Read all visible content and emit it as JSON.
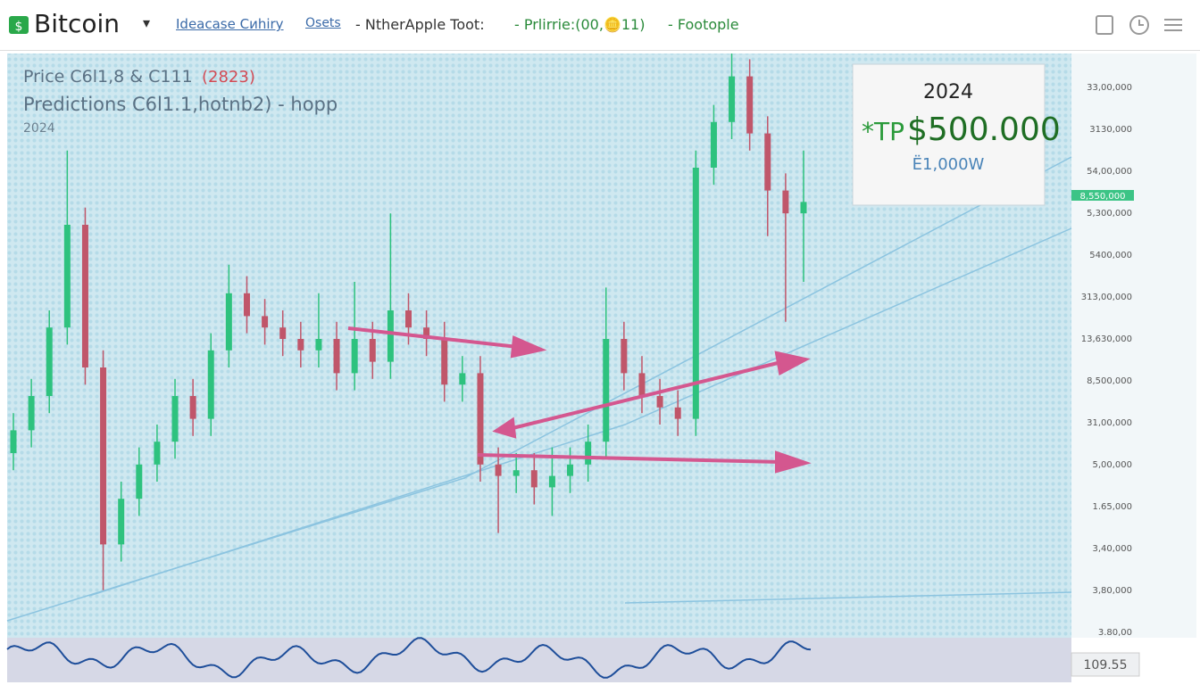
{
  "header": {
    "logo": "Bitcoin",
    "tabs": [
      "Ideacase Cиhiry",
      "Osets"
    ],
    "items": [
      "- NtherApple Toot:",
      "- Prlirrie:(00,🪙11)",
      "- Footople"
    ]
  },
  "chart": {
    "legend": {
      "price": "Price C6l1,8 & C111",
      "price_tag": "(2823)",
      "predictions": "Predictions C6l1.1,hotnb2) - hopp",
      "year": "2024"
    },
    "callout": {
      "year": "2024",
      "prefix": "*TP",
      "target": "$500.000",
      "sub": "Ё1,000W"
    },
    "price_labels": [
      "33,00,000",
      "3130,000",
      "54,00,000",
      "5,300,000",
      "5400,000",
      "313,00,000",
      "13,630,000",
      "8,500,000",
      "31,00,000",
      "5,00,000",
      "1.65,000",
      "3,40,000",
      "3,80,000",
      "3.80,00"
    ],
    "price_tag": "8,550,000",
    "indicator_value": "109.55",
    "ylim": [
      0,
      100
    ],
    "candles": [
      [
        30,
        37,
        27,
        34
      ],
      [
        34,
        43,
        31,
        40
      ],
      [
        40,
        55,
        37,
        52
      ],
      [
        52,
        83,
        49,
        70
      ],
      [
        70,
        73,
        42,
        45
      ],
      [
        45,
        48,
        6,
        14
      ],
      [
        14,
        25,
        11,
        22
      ],
      [
        22,
        31,
        19,
        28
      ],
      [
        28,
        35,
        25,
        32
      ],
      [
        32,
        43,
        29,
        40
      ],
      [
        40,
        43,
        33,
        36
      ],
      [
        36,
        51,
        33,
        48
      ],
      [
        48,
        63,
        45,
        58
      ],
      [
        58,
        61,
        51,
        54
      ],
      [
        54,
        57,
        49,
        52
      ],
      [
        52,
        55,
        47,
        50
      ],
      [
        50,
        53,
        45,
        48
      ],
      [
        48,
        58,
        45,
        50
      ],
      [
        50,
        53,
        41,
        44
      ],
      [
        44,
        60,
        41,
        50
      ],
      [
        50,
        53,
        43,
        46
      ],
      [
        46,
        72,
        43,
        55
      ],
      [
        55,
        58,
        49,
        52
      ],
      [
        52,
        55,
        47,
        50
      ],
      [
        50,
        53,
        39,
        42
      ],
      [
        42,
        47,
        39,
        44
      ],
      [
        44,
        47,
        25,
        28
      ],
      [
        28,
        31,
        16,
        26
      ],
      [
        26,
        30,
        23,
        27
      ],
      [
        27,
        30,
        21,
        24
      ],
      [
        24,
        31,
        19,
        26
      ],
      [
        26,
        31,
        23,
        28
      ],
      [
        28,
        35,
        25,
        32
      ],
      [
        32,
        59,
        29,
        50
      ],
      [
        50,
        53,
        41,
        44
      ],
      [
        44,
        47,
        37,
        40
      ],
      [
        40,
        43,
        35,
        38
      ],
      [
        38,
        41,
        33,
        36
      ],
      [
        36,
        83,
        33,
        80
      ],
      [
        80,
        91,
        77,
        88
      ],
      [
        88,
        100,
        85,
        96
      ],
      [
        96,
        99,
        83,
        86
      ],
      [
        86,
        89,
        68,
        76
      ],
      [
        76,
        79,
        53,
        72
      ],
      [
        72,
        83,
        60,
        74
      ]
    ]
  }
}
